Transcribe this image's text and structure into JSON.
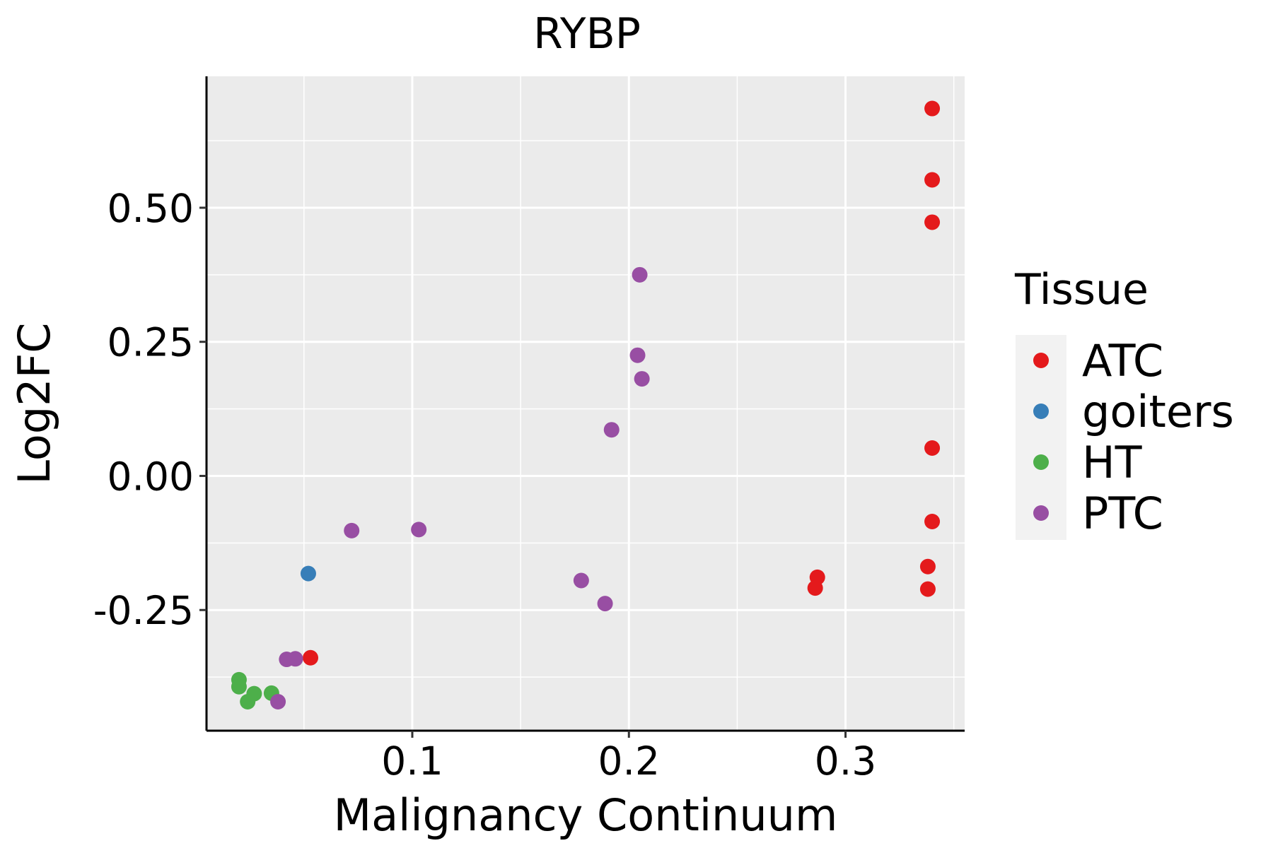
{
  "chart_data": {
    "type": "scatter",
    "title": "RYBP",
    "xlabel": "Malignancy Continuum",
    "ylabel": "Log2FC",
    "xlim": [
      0.005,
      0.355
    ],
    "ylim": [
      -0.475,
      0.745
    ],
    "x_ticks": [
      0.1,
      0.2,
      0.3
    ],
    "x_tick_labels": [
      "0.1",
      "0.2",
      "0.3"
    ],
    "y_ticks": [
      0.5,
      0.25,
      0.0,
      -0.25
    ],
    "y_tick_labels": [
      "0.50",
      "0.25",
      "0.00",
      "-0.25"
    ],
    "grid": true,
    "legend": {
      "title": "Tissue",
      "placement": "right",
      "entries": [
        {
          "name": "ATC",
          "color": "#E41A1C"
        },
        {
          "name": "goiters",
          "color": "#377EB8"
        },
        {
          "name": "HT",
          "color": "#4DAF4A"
        },
        {
          "name": "PTC",
          "color": "#984EA3"
        }
      ]
    },
    "series": [
      {
        "name": "ATC",
        "color": "#E41A1C",
        "points": [
          {
            "x": 0.34,
            "y": 0.685
          },
          {
            "x": 0.34,
            "y": 0.552
          },
          {
            "x": 0.34,
            "y": 0.473
          },
          {
            "x": 0.34,
            "y": 0.052
          },
          {
            "x": 0.34,
            "y": -0.085
          },
          {
            "x": 0.338,
            "y": -0.169
          },
          {
            "x": 0.338,
            "y": -0.211
          },
          {
            "x": 0.287,
            "y": -0.189
          },
          {
            "x": 0.286,
            "y": -0.209
          },
          {
            "x": 0.053,
            "y": -0.339
          }
        ]
      },
      {
        "name": "goiters",
        "color": "#377EB8",
        "points": [
          {
            "x": 0.052,
            "y": -0.182
          }
        ]
      },
      {
        "name": "HT",
        "color": "#4DAF4A",
        "points": [
          {
            "x": 0.02,
            "y": -0.38
          },
          {
            "x": 0.02,
            "y": -0.393
          },
          {
            "x": 0.027,
            "y": -0.406
          },
          {
            "x": 0.024,
            "y": -0.421
          },
          {
            "x": 0.035,
            "y": -0.405
          }
        ]
      },
      {
        "name": "PTC",
        "color": "#984EA3",
        "points": [
          {
            "x": 0.205,
            "y": 0.375
          },
          {
            "x": 0.204,
            "y": 0.225
          },
          {
            "x": 0.206,
            "y": 0.181
          },
          {
            "x": 0.192,
            "y": 0.086
          },
          {
            "x": 0.072,
            "y": -0.102
          },
          {
            "x": 0.103,
            "y": -0.1
          },
          {
            "x": 0.178,
            "y": -0.195
          },
          {
            "x": 0.189,
            "y": -0.238
          },
          {
            "x": 0.042,
            "y": -0.342
          },
          {
            "x": 0.046,
            "y": -0.341
          },
          {
            "x": 0.038,
            "y": -0.421
          }
        ]
      }
    ]
  }
}
